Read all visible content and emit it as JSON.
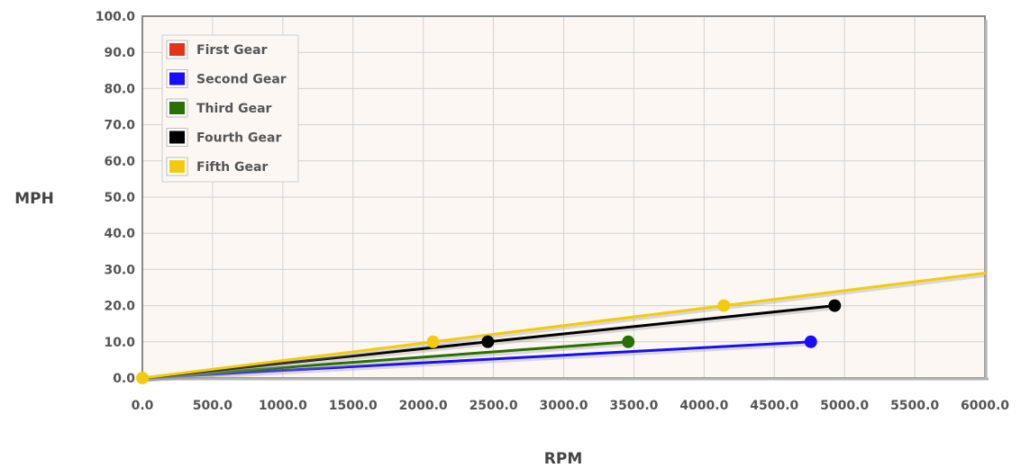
{
  "chart_data": {
    "type": "line",
    "title": "",
    "xlabel": "RPM",
    "ylabel": "MPH",
    "xlim": [
      0,
      6000
    ],
    "ylim": [
      0,
      100
    ],
    "x_ticks": [
      "0.0",
      "500.0",
      "1000.0",
      "1500.0",
      "2000.0",
      "2500.0",
      "3000.0",
      "3500.0",
      "4000.0",
      "4500.0",
      "5000.0",
      "5500.0",
      "6000.0"
    ],
    "y_ticks": [
      "0.0",
      "10.0",
      "20.0",
      "30.0",
      "40.0",
      "50.0",
      "60.0",
      "70.0",
      "80.0",
      "90.0",
      "100.0"
    ],
    "grid": true,
    "legend_position": "top-left",
    "background_color": "#fdf7f3",
    "series": [
      {
        "name": "First Gear",
        "color": "#e8311a",
        "points": []
      },
      {
        "name": "Second Gear",
        "color": "#1a0dff",
        "points": [
          [
            0,
            0
          ],
          [
            4760,
            10
          ]
        ],
        "markers": [
          [
            4760,
            10
          ]
        ]
      },
      {
        "name": "Third Gear",
        "color": "#2a7000",
        "points": [
          [
            0,
            0
          ],
          [
            3460,
            10
          ]
        ],
        "markers": [
          [
            3460,
            10
          ]
        ]
      },
      {
        "name": "Fourth Gear",
        "color": "#000000",
        "points": [
          [
            0,
            0
          ],
          [
            2460,
            10
          ],
          [
            4930,
            20
          ]
        ],
        "markers": [
          [
            2460,
            10
          ],
          [
            4930,
            20
          ]
        ]
      },
      {
        "name": "Fifth Gear",
        "color": "#f2cc0c",
        "points": [
          [
            0,
            0
          ],
          [
            2070,
            10
          ],
          [
            4140,
            20
          ],
          [
            6000,
            29
          ]
        ],
        "markers": [
          [
            0,
            0
          ],
          [
            2070,
            10
          ],
          [
            4140,
            20
          ]
        ]
      }
    ]
  }
}
